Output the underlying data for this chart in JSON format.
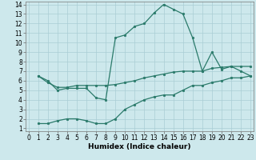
{
  "line1_x": [
    1,
    2,
    3,
    4,
    5,
    6,
    7,
    8,
    9,
    10,
    11,
    12,
    13,
    14,
    15,
    16,
    17,
    18,
    19,
    20,
    21,
    22,
    23
  ],
  "line1_y": [
    6.5,
    6.0,
    5.0,
    5.2,
    5.2,
    5.2,
    4.2,
    4.0,
    10.5,
    10.8,
    11.7,
    12.0,
    13.1,
    14.0,
    13.5,
    13.0,
    10.5,
    7.0,
    9.0,
    7.2,
    7.5,
    7.0,
    6.5
  ],
  "line2_x": [
    1,
    2,
    3,
    4,
    5,
    6,
    7,
    8,
    9,
    10,
    11,
    12,
    13,
    14,
    15,
    16,
    17,
    18,
    19,
    20,
    21,
    22,
    23
  ],
  "line2_y": [
    6.5,
    5.8,
    5.3,
    5.3,
    5.5,
    5.5,
    5.5,
    5.5,
    5.6,
    5.8,
    6.0,
    6.3,
    6.5,
    6.7,
    6.9,
    7.0,
    7.0,
    7.0,
    7.3,
    7.4,
    7.5,
    7.5,
    7.5
  ],
  "line3_x": [
    1,
    2,
    3,
    4,
    5,
    6,
    7,
    8,
    9,
    10,
    11,
    12,
    13,
    14,
    15,
    16,
    17,
    18,
    19,
    20,
    21,
    22,
    23
  ],
  "line3_y": [
    1.5,
    1.5,
    1.8,
    2.0,
    2.0,
    1.8,
    1.5,
    1.5,
    2.0,
    3.0,
    3.5,
    4.0,
    4.3,
    4.5,
    4.5,
    5.0,
    5.5,
    5.5,
    5.8,
    6.0,
    6.3,
    6.3,
    6.5
  ],
  "color": "#2a7a6a",
  "bg_color": "#cde8ec",
  "grid_color": "#aacdd4",
  "xlabel": "Humidex (Indice chaleur)",
  "xlim": [
    -0.3,
    23.3
  ],
  "ylim_min": 0.7,
  "ylim_max": 14.3,
  "xticks": [
    0,
    1,
    2,
    3,
    4,
    5,
    6,
    7,
    8,
    9,
    10,
    11,
    12,
    13,
    14,
    15,
    16,
    17,
    18,
    19,
    20,
    21,
    22,
    23
  ],
  "yticks": [
    1,
    2,
    3,
    4,
    5,
    6,
    7,
    8,
    9,
    10,
    11,
    12,
    13,
    14
  ],
  "tick_fontsize": 5.5,
  "xlabel_fontsize": 6.5,
  "linewidth": 0.9,
  "markersize": 1.8
}
